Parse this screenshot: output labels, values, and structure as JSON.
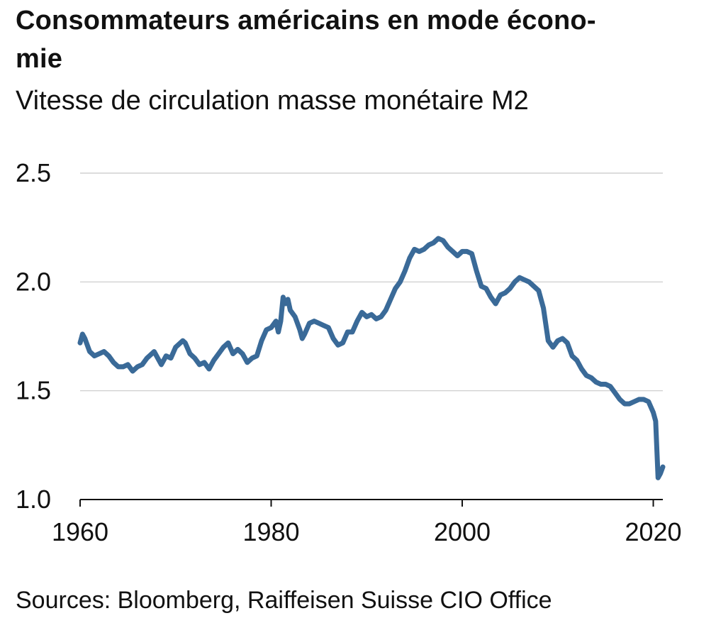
{
  "title": "Consommateurs américains en mode écono-mie",
  "title_lines": [
    "Consommateurs américains en mode écono-",
    "mie"
  ],
  "subtitle": "Vitesse de circulation masse monétaire M2",
  "source": "Sources: Bloomberg, Raiffeisen Suisse CIO Office",
  "colors": {
    "line": "#3a6a98",
    "grid": "#c8c8c8",
    "axis": "#111111",
    "text": "#111111"
  },
  "chart_data": {
    "type": "line",
    "title": "Consommateurs américains en mode écono-mie",
    "subtitle": "Vitesse de circulation masse monétaire M2",
    "xlabel": "",
    "ylabel": "",
    "xlim": [
      1960,
      2021
    ],
    "ylim": [
      1.0,
      2.5
    ],
    "xticks": [
      1960,
      1980,
      2000,
      2020
    ],
    "xtick_labels": [
      "1960",
      "1980",
      "2000",
      "2020"
    ],
    "yticks": [
      1.0,
      1.5,
      2.0,
      2.5
    ],
    "ytick_labels": [
      "1.0",
      "1.5",
      "2.0",
      "2.5"
    ],
    "grid": "horizontal",
    "series": [
      {
        "name": "",
        "points": [
          [
            1960.0,
            1.72
          ],
          [
            1960.25,
            1.76
          ],
          [
            1960.5,
            1.74
          ],
          [
            1961.0,
            1.68
          ],
          [
            1961.5,
            1.66
          ],
          [
            1962.0,
            1.67
          ],
          [
            1962.5,
            1.68
          ],
          [
            1963.0,
            1.66
          ],
          [
            1963.5,
            1.63
          ],
          [
            1964.0,
            1.61
          ],
          [
            1964.5,
            1.61
          ],
          [
            1965.0,
            1.62
          ],
          [
            1965.5,
            1.59
          ],
          [
            1966.0,
            1.61
          ],
          [
            1966.5,
            1.62
          ],
          [
            1967.0,
            1.65
          ],
          [
            1967.5,
            1.67
          ],
          [
            1967.75,
            1.68
          ],
          [
            1968.0,
            1.66
          ],
          [
            1968.5,
            1.62
          ],
          [
            1969.0,
            1.66
          ],
          [
            1969.5,
            1.65
          ],
          [
            1970.0,
            1.7
          ],
          [
            1970.5,
            1.72
          ],
          [
            1970.75,
            1.73
          ],
          [
            1971.0,
            1.72
          ],
          [
            1971.5,
            1.67
          ],
          [
            1972.0,
            1.65
          ],
          [
            1972.5,
            1.62
          ],
          [
            1973.0,
            1.63
          ],
          [
            1973.5,
            1.6
          ],
          [
            1974.0,
            1.64
          ],
          [
            1974.5,
            1.67
          ],
          [
            1975.0,
            1.7
          ],
          [
            1975.5,
            1.72
          ],
          [
            1976.0,
            1.67
          ],
          [
            1976.5,
            1.69
          ],
          [
            1977.0,
            1.67
          ],
          [
            1977.5,
            1.63
          ],
          [
            1978.0,
            1.65
          ],
          [
            1978.5,
            1.66
          ],
          [
            1979.0,
            1.73
          ],
          [
            1979.5,
            1.78
          ],
          [
            1980.0,
            1.79
          ],
          [
            1980.5,
            1.82
          ],
          [
            1980.75,
            1.77
          ],
          [
            1981.0,
            1.82
          ],
          [
            1981.25,
            1.93
          ],
          [
            1981.5,
            1.9
          ],
          [
            1981.75,
            1.92
          ],
          [
            1982.0,
            1.87
          ],
          [
            1982.5,
            1.84
          ],
          [
            1983.0,
            1.78
          ],
          [
            1983.25,
            1.74
          ],
          [
            1983.5,
            1.76
          ],
          [
            1984.0,
            1.81
          ],
          [
            1984.5,
            1.82
          ],
          [
            1985.0,
            1.81
          ],
          [
            1985.5,
            1.8
          ],
          [
            1986.0,
            1.79
          ],
          [
            1986.5,
            1.74
          ],
          [
            1987.0,
            1.71
          ],
          [
            1987.5,
            1.72
          ],
          [
            1988.0,
            1.77
          ],
          [
            1988.5,
            1.77
          ],
          [
            1989.0,
            1.82
          ],
          [
            1989.5,
            1.86
          ],
          [
            1990.0,
            1.84
          ],
          [
            1990.5,
            1.85
          ],
          [
            1991.0,
            1.83
          ],
          [
            1991.5,
            1.84
          ],
          [
            1992.0,
            1.87
          ],
          [
            1992.5,
            1.92
          ],
          [
            1993.0,
            1.97
          ],
          [
            1993.5,
            2.0
          ],
          [
            1994.0,
            2.05
          ],
          [
            1994.5,
            2.11
          ],
          [
            1995.0,
            2.15
          ],
          [
            1995.5,
            2.14
          ],
          [
            1996.0,
            2.15
          ],
          [
            1996.5,
            2.17
          ],
          [
            1997.0,
            2.18
          ],
          [
            1997.5,
            2.2
          ],
          [
            1998.0,
            2.19
          ],
          [
            1998.5,
            2.16
          ],
          [
            1999.0,
            2.14
          ],
          [
            1999.5,
            2.12
          ],
          [
            2000.0,
            2.14
          ],
          [
            2000.5,
            2.14
          ],
          [
            2001.0,
            2.13
          ],
          [
            2001.5,
            2.05
          ],
          [
            2002.0,
            1.98
          ],
          [
            2002.5,
            1.97
          ],
          [
            2003.0,
            1.93
          ],
          [
            2003.5,
            1.9
          ],
          [
            2004.0,
            1.94
          ],
          [
            2004.5,
            1.95
          ],
          [
            2005.0,
            1.97
          ],
          [
            2005.5,
            2.0
          ],
          [
            2006.0,
            2.02
          ],
          [
            2006.5,
            2.01
          ],
          [
            2007.0,
            2.0
          ],
          [
            2007.5,
            1.98
          ],
          [
            2008.0,
            1.96
          ],
          [
            2008.5,
            1.88
          ],
          [
            2009.0,
            1.73
          ],
          [
            2009.5,
            1.7
          ],
          [
            2010.0,
            1.73
          ],
          [
            2010.5,
            1.74
          ],
          [
            2011.0,
            1.72
          ],
          [
            2011.5,
            1.66
          ],
          [
            2012.0,
            1.64
          ],
          [
            2012.5,
            1.6
          ],
          [
            2013.0,
            1.57
          ],
          [
            2013.5,
            1.56
          ],
          [
            2014.0,
            1.54
          ],
          [
            2014.5,
            1.53
          ],
          [
            2015.0,
            1.53
          ],
          [
            2015.5,
            1.52
          ],
          [
            2016.0,
            1.49
          ],
          [
            2016.5,
            1.46
          ],
          [
            2017.0,
            1.44
          ],
          [
            2017.5,
            1.44
          ],
          [
            2018.0,
            1.45
          ],
          [
            2018.5,
            1.46
          ],
          [
            2019.0,
            1.46
          ],
          [
            2019.5,
            1.45
          ],
          [
            2020.0,
            1.4
          ],
          [
            2020.25,
            1.36
          ],
          [
            2020.5,
            1.1
          ],
          [
            2020.75,
            1.12
          ],
          [
            2021.0,
            1.15
          ]
        ]
      }
    ]
  }
}
